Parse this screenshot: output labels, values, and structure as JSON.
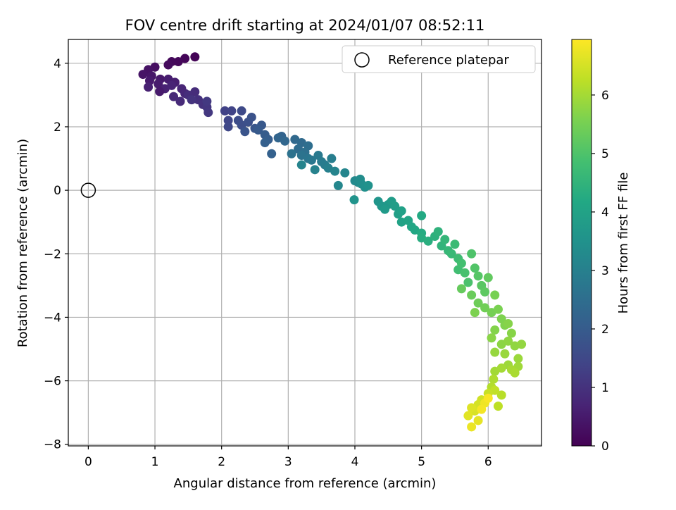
{
  "chart_data": {
    "type": "scatter",
    "title": "FOV centre drift starting at 2024/01/07 08:52:11",
    "xlabel": "Angular distance from reference (arcmin)",
    "ylabel": "Rotation from reference (arcmin)",
    "xlim": [
      -0.3,
      6.8
    ],
    "ylim": [
      -8.05,
      4.75
    ],
    "xticks": [
      0,
      1,
      2,
      3,
      4,
      5,
      6
    ],
    "yticks": [
      -8,
      -6,
      -4,
      -2,
      0,
      2,
      4
    ],
    "xtick_labels": [
      "0",
      "1",
      "2",
      "3",
      "4",
      "5",
      "6"
    ],
    "ytick_labels": [
      "−8",
      "−6",
      "−4",
      "−2",
      "0",
      "2",
      "4"
    ],
    "grid": true,
    "legend": {
      "position": "top-right",
      "entries": [
        "Reference platepar"
      ]
    },
    "reference_point": {
      "x": 0,
      "y": 0
    },
    "colorbar": {
      "label": "Hours from first FF file",
      "range": [
        0,
        6.95
      ],
      "ticks": [
        0,
        1,
        2,
        3,
        4,
        5,
        6
      ],
      "tick_labels": [
        "0",
        "1",
        "2",
        "3",
        "4",
        "5",
        "6"
      ],
      "colormap": "viridis"
    },
    "points": [
      [
        1.6,
        4.2,
        0.05
      ],
      [
        1.45,
        4.15,
        0.08
      ],
      [
        1.35,
        4.05,
        0.12
      ],
      [
        1.25,
        4.05,
        0.15
      ],
      [
        1.2,
        3.95,
        0.2
      ],
      [
        1.0,
        3.88,
        0.28
      ],
      [
        0.9,
        3.8,
        0.33
      ],
      [
        0.82,
        3.65,
        0.38
      ],
      [
        0.95,
        3.6,
        0.42
      ],
      [
        1.08,
        3.5,
        0.46
      ],
      [
        0.92,
        3.45,
        0.5
      ],
      [
        1.05,
        3.35,
        0.53
      ],
      [
        1.2,
        3.5,
        0.56
      ],
      [
        1.3,
        3.4,
        0.6
      ],
      [
        0.9,
        3.25,
        0.63
      ],
      [
        1.15,
        3.2,
        0.66
      ],
      [
        1.25,
        3.3,
        0.7
      ],
      [
        1.4,
        3.2,
        0.73
      ],
      [
        1.45,
        3.05,
        0.77
      ],
      [
        1.28,
        2.95,
        0.8
      ],
      [
        1.38,
        2.8,
        0.84
      ],
      [
        1.6,
        3.1,
        0.88
      ],
      [
        1.5,
        3.0,
        0.92
      ],
      [
        1.65,
        2.85,
        0.96
      ],
      [
        1.72,
        2.7,
        1.0
      ],
      [
        1.55,
        2.85,
        1.04
      ],
      [
        1.78,
        2.62,
        1.08
      ],
      [
        1.8,
        2.45,
        1.12
      ],
      [
        1.78,
        2.8,
        1.16
      ],
      [
        1.07,
        3.11,
        0.5
      ],
      [
        2.05,
        2.5,
        1.35
      ],
      [
        2.15,
        2.5,
        1.4
      ],
      [
        2.1,
        2.2,
        1.45
      ],
      [
        2.1,
        2.0,
        1.5
      ],
      [
        2.3,
        2.5,
        1.55
      ],
      [
        2.25,
        2.2,
        1.6
      ],
      [
        2.3,
        2.05,
        1.65
      ],
      [
        2.4,
        2.15,
        1.7
      ],
      [
        2.45,
        2.3,
        1.75
      ],
      [
        2.35,
        1.85,
        1.8
      ],
      [
        2.5,
        1.95,
        1.85
      ],
      [
        2.6,
        2.05,
        1.9
      ],
      [
        2.55,
        1.9,
        1.95
      ],
      [
        2.65,
        1.75,
        2.0
      ],
      [
        2.7,
        1.6,
        2.05
      ],
      [
        2.65,
        1.5,
        2.1
      ],
      [
        2.75,
        1.15,
        2.15
      ],
      [
        2.9,
        1.7,
        2.2
      ],
      [
        2.85,
        1.65,
        2.25
      ],
      [
        2.95,
        1.55,
        2.3
      ],
      [
        3.1,
        1.6,
        2.35
      ],
      [
        3.2,
        1.5,
        2.4
      ],
      [
        3.15,
        1.3,
        2.45
      ],
      [
        3.3,
        1.4,
        2.5
      ],
      [
        3.25,
        1.2,
        2.55
      ],
      [
        3.05,
        1.15,
        2.6
      ],
      [
        3.2,
        1.1,
        2.65
      ],
      [
        3.3,
        1.0,
        2.7
      ],
      [
        3.35,
        0.95,
        2.75
      ],
      [
        3.45,
        1.1,
        2.8
      ],
      [
        3.5,
        0.9,
        2.85
      ],
      [
        3.55,
        0.8,
        2.9
      ],
      [
        3.65,
        1.0,
        2.95
      ],
      [
        3.6,
        0.7,
        3.0
      ],
      [
        3.4,
        0.65,
        3.05
      ],
      [
        3.7,
        0.6,
        3.1
      ],
      [
        3.2,
        0.8,
        3.1
      ],
      [
        3.85,
        0.55,
        3.15
      ],
      [
        3.75,
        0.15,
        3.2
      ],
      [
        4.0,
        0.3,
        3.25
      ],
      [
        4.05,
        0.25,
        3.3
      ],
      [
        4.08,
        0.35,
        3.35
      ],
      [
        4.1,
        0.2,
        3.4
      ],
      [
        4.15,
        0.1,
        3.45
      ],
      [
        4.2,
        0.15,
        3.5
      ],
      [
        3.99,
        -0.3,
        3.55
      ],
      [
        4.35,
        -0.35,
        3.6
      ],
      [
        4.4,
        -0.5,
        3.65
      ],
      [
        4.5,
        -0.45,
        3.7
      ],
      [
        4.45,
        -0.6,
        3.75
      ],
      [
        4.55,
        -0.35,
        3.8
      ],
      [
        4.6,
        -0.5,
        3.85
      ],
      [
        4.65,
        -0.75,
        3.9
      ],
      [
        4.7,
        -0.65,
        3.95
      ],
      [
        4.7,
        -1.0,
        4.0
      ],
      [
        4.8,
        -0.95,
        4.05
      ],
      [
        4.85,
        -1.15,
        4.1
      ],
      [
        4.9,
        -1.25,
        4.15
      ],
      [
        5.0,
        -0.8,
        4.2
      ],
      [
        5.0,
        -1.35,
        4.25
      ],
      [
        5.0,
        -1.5,
        4.3
      ],
      [
        5.1,
        -1.6,
        4.35
      ],
      [
        5.2,
        -1.45,
        4.4
      ],
      [
        5.25,
        -1.3,
        4.45
      ],
      [
        5.3,
        -1.75,
        4.5
      ],
      [
        5.35,
        -1.55,
        4.55
      ],
      [
        5.4,
        -1.9,
        4.6
      ],
      [
        5.45,
        -2.0,
        4.65
      ],
      [
        5.5,
        -1.7,
        4.7
      ],
      [
        5.55,
        -2.15,
        4.75
      ],
      [
        5.55,
        -2.5,
        4.8
      ],
      [
        5.6,
        -2.3,
        4.85
      ],
      [
        5.65,
        -2.6,
        4.9
      ],
      [
        5.7,
        -2.9,
        4.95
      ],
      [
        5.75,
        -2.0,
        5.0
      ],
      [
        5.8,
        -2.45,
        5.05
      ],
      [
        5.85,
        -2.7,
        5.1
      ],
      [
        5.9,
        -3.0,
        5.15
      ],
      [
        5.95,
        -3.2,
        5.2
      ],
      [
        6.0,
        -2.75,
        5.25
      ],
      [
        5.6,
        -3.1,
        5.3
      ],
      [
        5.75,
        -3.3,
        5.35
      ],
      [
        5.85,
        -3.55,
        5.4
      ],
      [
        5.95,
        -3.7,
        5.45
      ],
      [
        6.05,
        -3.85,
        5.5
      ],
      [
        6.1,
        -3.3,
        5.52
      ],
      [
        6.15,
        -3.75,
        5.55
      ],
      [
        5.8,
        -3.85,
        5.58
      ],
      [
        6.2,
        -4.05,
        5.6
      ],
      [
        6.25,
        -4.25,
        5.62
      ],
      [
        6.1,
        -4.4,
        5.65
      ],
      [
        6.3,
        -4.2,
        5.68
      ],
      [
        6.35,
        -4.5,
        5.7
      ],
      [
        6.05,
        -4.65,
        5.72
      ],
      [
        6.2,
        -4.85,
        5.75
      ],
      [
        6.3,
        -4.75,
        5.78
      ],
      [
        6.4,
        -4.9,
        5.8
      ],
      [
        6.5,
        -4.85,
        5.82
      ],
      [
        6.1,
        -5.1,
        5.85
      ],
      [
        6.25,
        -5.15,
        5.88
      ],
      [
        6.45,
        -5.3,
        5.9
      ],
      [
        6.3,
        -5.5,
        5.92
      ],
      [
        6.45,
        -5.55,
        5.95
      ],
      [
        6.1,
        -5.7,
        5.98
      ],
      [
        6.2,
        -5.6,
        6.0
      ],
      [
        6.35,
        -5.65,
        6.03
      ],
      [
        6.4,
        -5.75,
        6.06
      ],
      [
        6.08,
        -5.95,
        6.1
      ],
      [
        6.05,
        -6.2,
        6.15
      ],
      [
        6.2,
        -6.45,
        6.2
      ],
      [
        6.15,
        -6.8,
        6.25
      ],
      [
        6.1,
        -6.3,
        6.3
      ],
      [
        6.0,
        -6.4,
        6.35
      ],
      [
        5.95,
        -6.65,
        6.4
      ],
      [
        5.9,
        -6.6,
        6.45
      ],
      [
        5.85,
        -6.75,
        6.5
      ],
      [
        5.8,
        -6.95,
        6.55
      ],
      [
        5.75,
        -6.85,
        6.6
      ],
      [
        5.7,
        -7.1,
        6.65
      ],
      [
        5.85,
        -7.25,
        6.7
      ],
      [
        5.75,
        -7.45,
        6.75
      ],
      [
        5.95,
        -6.7,
        6.8
      ],
      [
        5.9,
        -6.9,
        6.85
      ],
      [
        6.0,
        -6.55,
        6.9
      ]
    ]
  }
}
